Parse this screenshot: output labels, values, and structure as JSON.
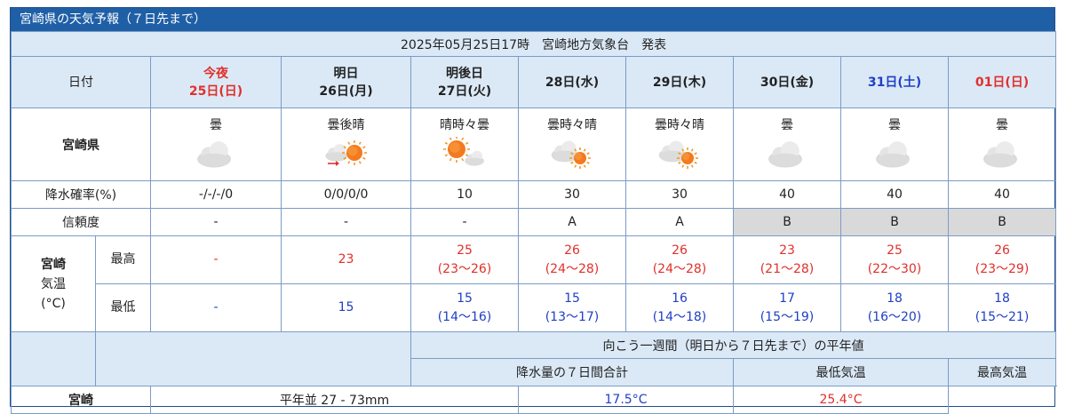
{
  "title": "宮崎県の天気予報（７日先まで）",
  "issued": "2025年05月25日17時　宮崎地方気象台　発表",
  "labels": {
    "date": "日付",
    "region": "宮崎県",
    "pop": "降水確率(%)",
    "reliability": "信頼度",
    "city": "宮崎",
    "temp": "気温",
    "unit": "(°C)",
    "max": "最高",
    "min": "最低"
  },
  "days": [
    {
      "line1": "今夜",
      "line2": "25日(日)",
      "color": "red",
      "weather": "曇",
      "icon": "cloud",
      "pop": "-/-/-/0",
      "rel": "-",
      "rel_grey": false,
      "max": "-",
      "max_range": "",
      "min": "-",
      "min_range": ""
    },
    {
      "line1": "明日",
      "line2": "26日(月)",
      "color": "black",
      "weather": "曇後晴",
      "icon": "cloud-then-sun",
      "pop": "0/0/0/0",
      "rel": "-",
      "rel_grey": false,
      "max": "23",
      "max_range": "",
      "min": "15",
      "min_range": ""
    },
    {
      "line1": "明後日",
      "line2": "27日(火)",
      "color": "black",
      "weather": "晴時々曇",
      "icon": "sun-cloud",
      "pop": "10",
      "rel": "-",
      "rel_grey": false,
      "max": "25",
      "max_range": "(23〜26)",
      "min": "15",
      "min_range": "(14〜16)"
    },
    {
      "line1": "",
      "line2": "28日(水)",
      "color": "black",
      "weather": "曇時々晴",
      "icon": "cloud-sun",
      "pop": "30",
      "rel": "A",
      "rel_grey": false,
      "max": "26",
      "max_range": "(24〜28)",
      "min": "15",
      "min_range": "(13〜17)"
    },
    {
      "line1": "",
      "line2": "29日(木)",
      "color": "black",
      "weather": "曇時々晴",
      "icon": "cloud-sun",
      "pop": "30",
      "rel": "A",
      "rel_grey": false,
      "max": "26",
      "max_range": "(24〜28)",
      "min": "16",
      "min_range": "(14〜18)"
    },
    {
      "line1": "",
      "line2": "30日(金)",
      "color": "black",
      "weather": "曇",
      "icon": "cloud",
      "pop": "40",
      "rel": "B",
      "rel_grey": true,
      "max": "23",
      "max_range": "(21〜28)",
      "min": "17",
      "min_range": "(15〜19)"
    },
    {
      "line1": "",
      "line2": "31日(土)",
      "color": "blue",
      "weather": "曇",
      "icon": "cloud",
      "pop": "40",
      "rel": "B",
      "rel_grey": true,
      "max": "25",
      "max_range": "(22〜30)",
      "min": "18",
      "min_range": "(16〜20)"
    },
    {
      "line1": "",
      "line2": "01日(日)",
      "color": "red",
      "weather": "曇",
      "icon": "cloud",
      "pop": "40",
      "rel": "B",
      "rel_grey": true,
      "max": "26",
      "max_range": "(23〜29)",
      "min": "18",
      "min_range": "(15〜21)"
    }
  ],
  "normals": {
    "header": "向こう一週間（明日から７日先まで）の平年値",
    "col_precip": "降水量の７日間合計",
    "col_min": "最低気温",
    "col_max": "最高気温",
    "city": "宮崎",
    "precip": "平年並 27 - 73mm",
    "min": "17.5°C",
    "max": "25.4°C"
  }
}
